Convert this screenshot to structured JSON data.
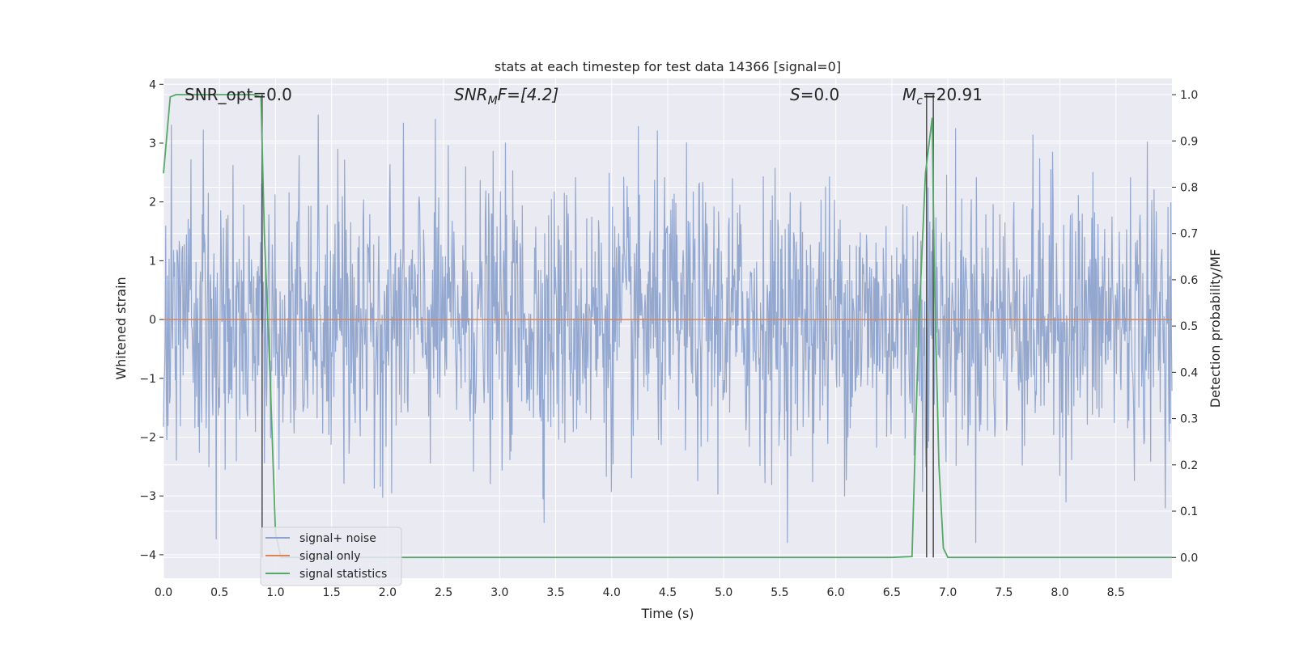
{
  "chart_data": {
    "type": "line",
    "title": "stats at each timestep for test data 14366 [signal=0]",
    "xlabel": "Time (s)",
    "ylabel": "Whitened strain",
    "ylabel_right": "Detection probability/MF",
    "xlim": [
      0,
      9.0
    ],
    "ylim": [
      -4.4,
      4.1
    ],
    "ylim_right": [
      -0.045,
      1.035
    ],
    "x_ticks": [
      "0.0",
      "0.5",
      "1.0",
      "1.5",
      "2.0",
      "2.5",
      "3.0",
      "3.5",
      "4.0",
      "4.5",
      "5.0",
      "5.5",
      "6.0",
      "6.5",
      "7.0",
      "7.5",
      "8.0",
      "8.5"
    ],
    "y_ticks": [
      "−4",
      "−3",
      "−2",
      "−1",
      "0",
      "1",
      "2",
      "3",
      "4"
    ],
    "y_ticks_right": [
      "0.0",
      "0.1",
      "0.2",
      "0.3",
      "0.4",
      "0.5",
      "0.6",
      "0.7",
      "0.8",
      "0.9",
      "1.0"
    ],
    "grid": true,
    "legend_position": "lower-left",
    "annotations": {
      "snr_opt": "SNR_opt=0.0",
      "snr_mf_base": "SNR",
      "snr_mf_sub": "M",
      "snr_mf_rest": "F=[4.2]",
      "s_sym": "S",
      "s_rest": "=0.0",
      "mc_base": "M",
      "mc_sub": "c",
      "mc_rest": "=20.91"
    },
    "colors": {
      "noise": "#8fa4cc",
      "signal": "#dd8452",
      "stats": "#55a868",
      "vline": "#4a4a4a",
      "background": "#eaeaf2",
      "grid": "#ffffff"
    },
    "series": [
      {
        "name": "signal+ noise",
        "description_range": "noise with amplitude roughly ±2 and spikes up to about ±3.8",
        "sample_count": 1800,
        "axis": "left"
      },
      {
        "name": "signal only",
        "axis": "left",
        "x": [
          0,
          9.0
        ],
        "y": [
          0,
          0
        ]
      },
      {
        "name": "signal statistics",
        "axis": "right",
        "x": [
          0.0,
          0.06,
          0.11,
          0.2,
          0.5,
          0.8,
          0.87,
          0.9,
          0.95,
          1.0,
          1.05,
          1.5,
          2.0,
          3.0,
          4.0,
          5.0,
          6.0,
          6.5,
          6.68,
          6.74,
          6.8,
          6.86,
          6.88,
          6.92,
          6.96,
          7.0,
          7.5,
          8.0,
          9.0
        ],
        "y": [
          0.83,
          0.995,
          1.0,
          1.0,
          1.0,
          1.0,
          0.995,
          0.7,
          0.4,
          0.05,
          0.0,
          0.0,
          0.0,
          0.0,
          0.0,
          0.0,
          0.0,
          0.0,
          0.002,
          0.5,
          0.83,
          0.95,
          0.6,
          0.2,
          0.02,
          0.0,
          0.0,
          0.0,
          0.0
        ]
      }
    ],
    "vlines": [
      0.88,
      6.81,
      6.87
    ]
  }
}
